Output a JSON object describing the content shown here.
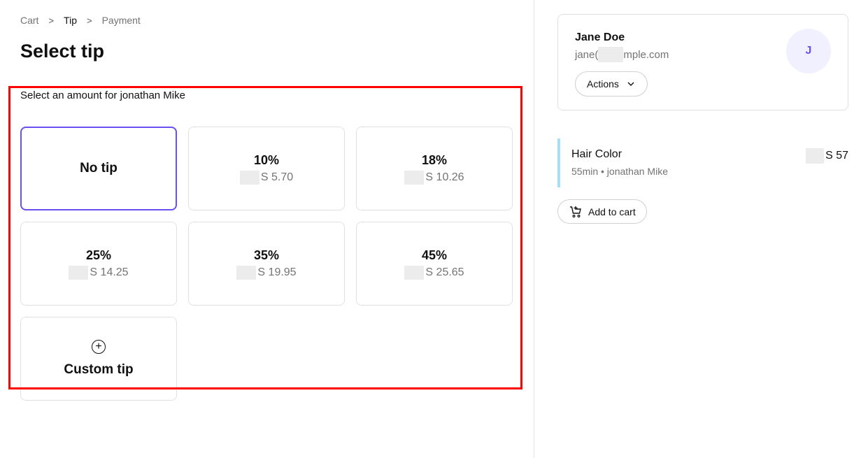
{
  "breadcrumb": [
    "Cart",
    "Tip",
    "Payment"
  ],
  "title": "Select tip",
  "subtitle": "Select an amount for jonathan Mike",
  "tip_options": [
    {
      "label": "No tip",
      "selected": true
    },
    {
      "label": "10%",
      "amount": "S 5.70"
    },
    {
      "label": "18%",
      "amount": "S 10.26"
    },
    {
      "label": "25%",
      "amount": "S 14.25"
    },
    {
      "label": "35%",
      "amount": "S 19.95"
    },
    {
      "label": "45%",
      "amount": "S 25.65"
    }
  ],
  "custom_tip": {
    "label": "Custom tip",
    "icon": "plus-circle-icon"
  },
  "client": {
    "name": "Jane Doe",
    "email_prefix": "jane(",
    "email_suffix": "mple.com",
    "avatar_initial": "J",
    "actions_label": "Actions"
  },
  "service": {
    "name": "Hair Color",
    "meta": "55min • jonathan Mike",
    "price": "S 57"
  },
  "add_to_cart": "Add to cart",
  "colors": {
    "accent": "#6950f3",
    "service_bar": "#a5dff8",
    "annotation": "#ff0000"
  }
}
